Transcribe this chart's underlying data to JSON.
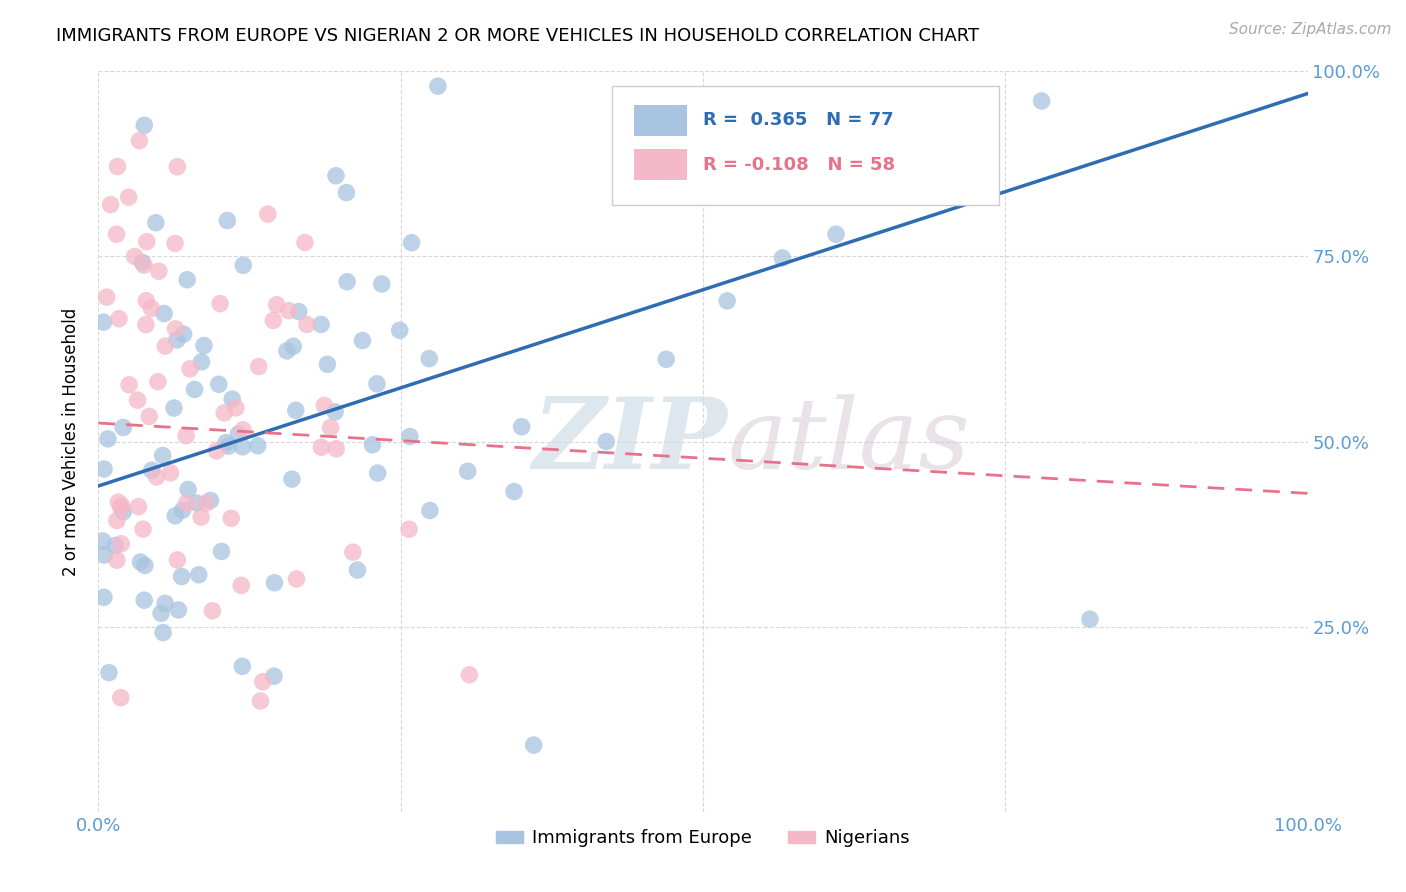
{
  "title": "IMMIGRANTS FROM EUROPE VS NIGERIAN 2 OR MORE VEHICLES IN HOUSEHOLD CORRELATION CHART",
  "source": "Source: ZipAtlas.com",
  "ylabel": "2 or more Vehicles in Household",
  "xlim": [
    0.0,
    1.0
  ],
  "ylim": [
    0.0,
    1.0
  ],
  "xtick_positions": [
    0.0,
    0.25,
    0.5,
    0.75,
    1.0
  ],
  "ytick_positions": [
    0.0,
    0.25,
    0.5,
    0.75,
    1.0
  ],
  "xticklabels": [
    "0.0%",
    "",
    "",
    "",
    "100.0%"
  ],
  "yticklabels_right": [
    "",
    "25.0%",
    "50.0%",
    "75.0%",
    "100.0%"
  ],
  "watermark_zip": "ZIP",
  "watermark_atlas": "atlas",
  "legend_text_europe": "R =  0.365   N = 77",
  "legend_text_nigerian": "R = -0.108   N = 58",
  "europe_color": "#a8c4e0",
  "nigerian_color": "#f5b8c8",
  "europe_line_color": "#2e6db4",
  "nigerian_line_color": "#e8728a",
  "background_color": "#ffffff",
  "grid_color": "#d8d8d8",
  "tick_color": "#5b9bd5",
  "legend_europe_label": "Immigrants from Europe",
  "legend_nigerian_label": "Nigerians",
  "europe_line_y0": 0.44,
  "europe_line_y1": 0.97,
  "nigerian_line_y0": 0.525,
  "nigerian_line_y1": 0.43
}
